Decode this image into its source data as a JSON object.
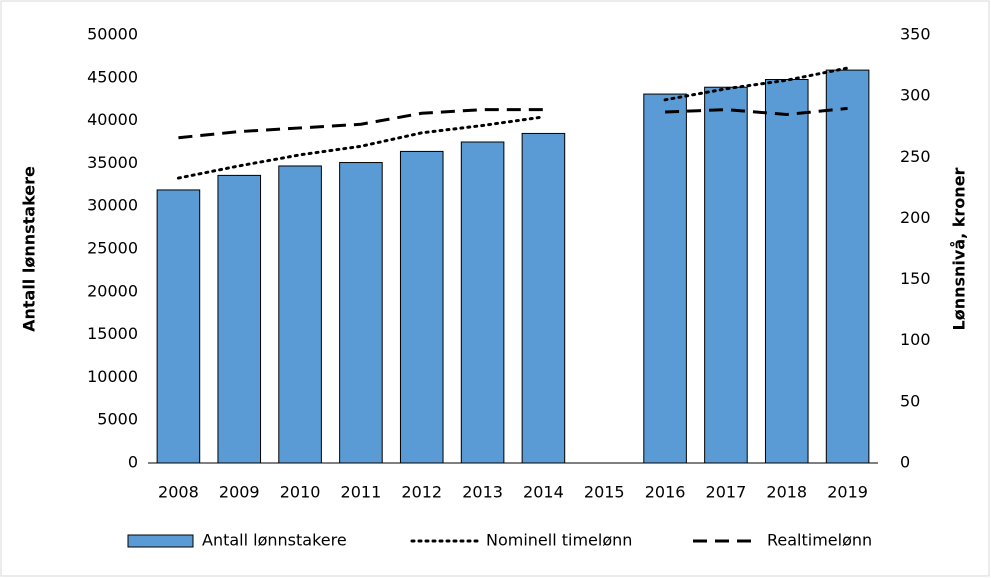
{
  "chart_data": {
    "type": "combo",
    "categories": [
      "2008",
      "2009",
      "2010",
      "2011",
      "2012",
      "2013",
      "2014",
      "2015",
      "2016",
      "2017",
      "2018",
      "2019"
    ],
    "ylabel": "Antall lønnstakere",
    "y2label": "Lønnsnivå, kroner",
    "ylim": [
      0,
      50000
    ],
    "yticks": [
      0,
      5000,
      10000,
      15000,
      20000,
      25000,
      30000,
      35000,
      40000,
      45000,
      50000
    ],
    "y2lim": [
      0,
      350
    ],
    "y2ticks": [
      0,
      50,
      100,
      150,
      200,
      250,
      300,
      350
    ],
    "legend": "bottom",
    "series": [
      {
        "name": "Antall lønnstakere",
        "type": "bar",
        "color": "#5b9bd5",
        "values": [
          31900,
          33600,
          34700,
          35100,
          36400,
          37500,
          38500,
          null,
          43100,
          43900,
          44800,
          45900
        ]
      },
      {
        "name": "Nominell timelønn",
        "type": "line",
        "axis": "y2",
        "color": "#000000",
        "dash": "dotted",
        "values": [
          233,
          243,
          252,
          259,
          270,
          276,
          283,
          null,
          297,
          306,
          313,
          323
        ]
      },
      {
        "name": "Realtimelønn",
        "type": "line",
        "axis": "y2",
        "color": "#000000",
        "dash": "dashed",
        "values": [
          266,
          271,
          274,
          277,
          286,
          289,
          289,
          null,
          287,
          289,
          285,
          290
        ]
      }
    ]
  }
}
